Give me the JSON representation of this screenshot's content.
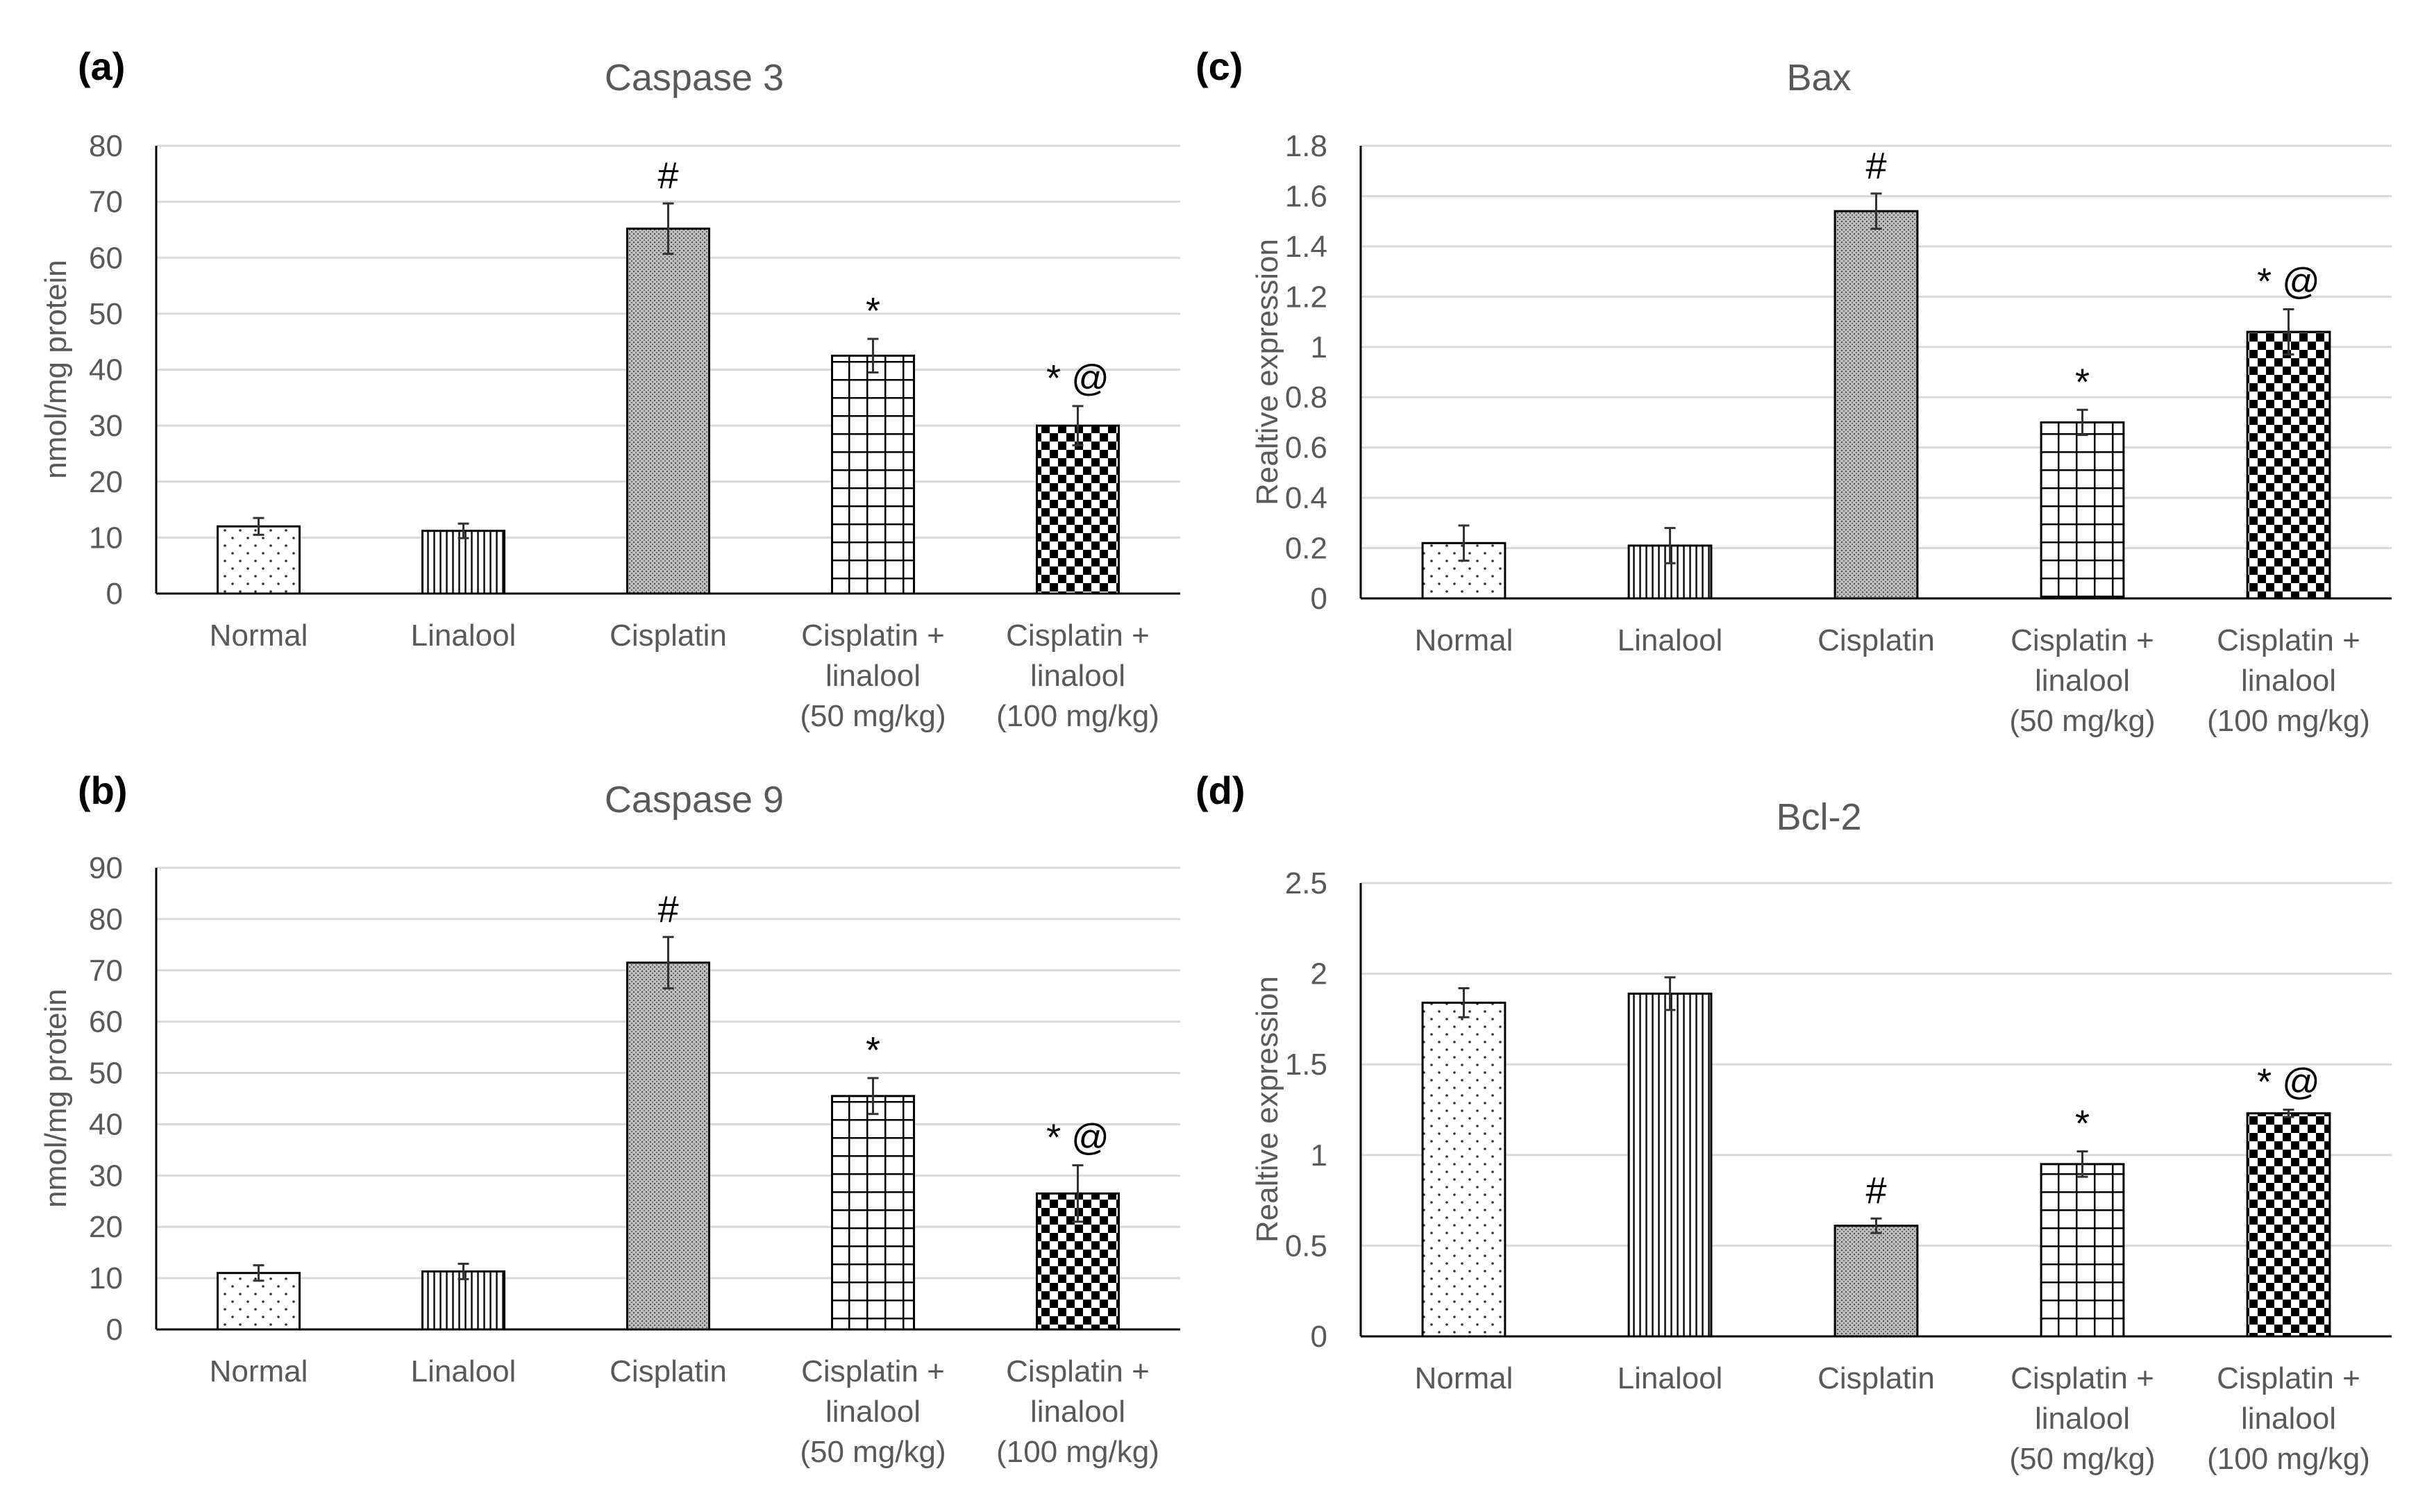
{
  "figure": {
    "background": "#ffffff",
    "gridline_color": "#d9d9d9",
    "axis_color": "#000000",
    "text_color": "#595959"
  },
  "chart_data": [
    {
      "panel_label": "(a)",
      "type": "bar",
      "title": "Caspase 3",
      "xlabel": "",
      "ylabel": "nmol/mg protein",
      "ylim": [
        0,
        80
      ],
      "yticks": [
        "0",
        "10",
        "20",
        "30",
        "40",
        "50",
        "60",
        "70",
        "80"
      ],
      "grid": true,
      "categories": [
        [
          "Normal"
        ],
        [
          "Linalool"
        ],
        [
          "Cisplatin"
        ],
        [
          "Cisplatin +",
          "linalool",
          "(50 mg/kg)"
        ],
        [
          "Cisplatin +",
          "linalool",
          "(100 mg/kg)"
        ]
      ],
      "values": [
        12,
        11.2,
        65.2,
        42.5,
        30
      ],
      "errors": [
        1.5,
        1.3,
        4.5,
        3,
        3.5
      ],
      "annotations": [
        "",
        "",
        "#",
        "*",
        "* @"
      ],
      "patterns": [
        "dots",
        "vlines",
        "fine",
        "grid",
        "checker"
      ]
    },
    {
      "panel_label": "(b)",
      "type": "bar",
      "title": "Caspase 9",
      "xlabel": "",
      "ylabel": "nmol/mg protein",
      "ylim": [
        0,
        90
      ],
      "yticks": [
        "0",
        "10",
        "20",
        "30",
        "40",
        "50",
        "60",
        "70",
        "80",
        "90"
      ],
      "grid": true,
      "categories": [
        [
          "Normal"
        ],
        [
          "Linalool"
        ],
        [
          "Cisplatin"
        ],
        [
          "Cisplatin +",
          "linalool",
          "(50 mg/kg)"
        ],
        [
          "Cisplatin +",
          "linalool",
          "(100 mg/kg)"
        ]
      ],
      "values": [
        11,
        11.3,
        71.5,
        45.5,
        26.5
      ],
      "errors": [
        1.5,
        1.5,
        5,
        3.5,
        5.5
      ],
      "annotations": [
        "",
        "",
        "#",
        "*",
        "* @"
      ],
      "patterns": [
        "dots",
        "vlines",
        "fine",
        "grid",
        "checker"
      ]
    },
    {
      "panel_label": "(c)",
      "type": "bar",
      "title": "Bax",
      "xlabel": "",
      "ylabel": "Realtive expression",
      "ylim": [
        0,
        1.8
      ],
      "yticks": [
        "0",
        "0.2",
        "0.4",
        "0.6",
        "0.8",
        "1",
        "1.2",
        "1.4",
        "1.6",
        "1.8"
      ],
      "grid": true,
      "categories": [
        [
          "Normal"
        ],
        [
          "Linalool"
        ],
        [
          "Cisplatin"
        ],
        [
          "Cisplatin +",
          "linalool",
          "(50 mg/kg)"
        ],
        [
          "Cisplatin +",
          "linalool",
          "(100 mg/kg)"
        ]
      ],
      "values": [
        0.22,
        0.21,
        1.54,
        0.7,
        1.06
      ],
      "errors": [
        0.07,
        0.07,
        0.07,
        0.05,
        0.09
      ],
      "annotations": [
        "",
        "",
        "#",
        "*",
        "* @"
      ],
      "patterns": [
        "dots",
        "vlines",
        "fine",
        "grid",
        "checker"
      ]
    },
    {
      "panel_label": "(d)",
      "type": "bar",
      "title": "Bcl-2",
      "xlabel": "",
      "ylabel": "Realtive expression",
      "ylim": [
        0,
        2.5
      ],
      "yticks": [
        "0",
        "0.5",
        "1",
        "1.5",
        "2",
        "2.5"
      ],
      "grid": true,
      "categories": [
        [
          "Normal"
        ],
        [
          "Linalool"
        ],
        [
          "Cisplatin"
        ],
        [
          "Cisplatin +",
          "linalool",
          "(50 mg/kg)"
        ],
        [
          "Cisplatin +",
          "linalool",
          "(100 mg/kg)"
        ]
      ],
      "values": [
        1.84,
        1.89,
        0.61,
        0.95,
        1.23
      ],
      "errors": [
        0.08,
        0.09,
        0.04,
        0.07,
        0.02
      ],
      "annotations": [
        "",
        "",
        "#",
        "*",
        "* @"
      ],
      "patterns": [
        "dots",
        "vlines",
        "fine",
        "grid",
        "checker"
      ]
    }
  ]
}
